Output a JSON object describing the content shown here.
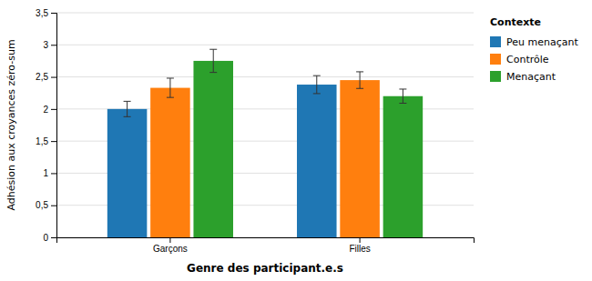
{
  "chart_data": {
    "type": "bar",
    "categories": [
      "Garçons",
      "Filles"
    ],
    "series": [
      {
        "name": "Peu menaçant",
        "values": [
          2.0,
          2.38
        ],
        "errors": [
          0.12,
          0.14
        ]
      },
      {
        "name": "Contrôle",
        "values": [
          2.33,
          2.45
        ],
        "errors": [
          0.15,
          0.13
        ]
      },
      {
        "name": "Menaçant",
        "values": [
          2.75,
          2.2
        ],
        "errors": [
          0.18,
          0.11
        ]
      }
    ],
    "xlabel": "Genre des participant.e.s",
    "ylabel": "Adhésion aux croyances zéro-sum",
    "legend_title": "Contexte",
    "legend": "upper right",
    "grid": true,
    "ylim": [
      0,
      3.5
    ],
    "yticks": [
      0,
      {
        "value": 0.5,
        "label": "0,5"
      },
      1,
      {
        "value": 1.5,
        "label": "1,5"
      },
      2,
      {
        "value": 2.5,
        "label": "2,5"
      },
      3,
      {
        "value": 3.5,
        "label": "3,5"
      }
    ]
  }
}
